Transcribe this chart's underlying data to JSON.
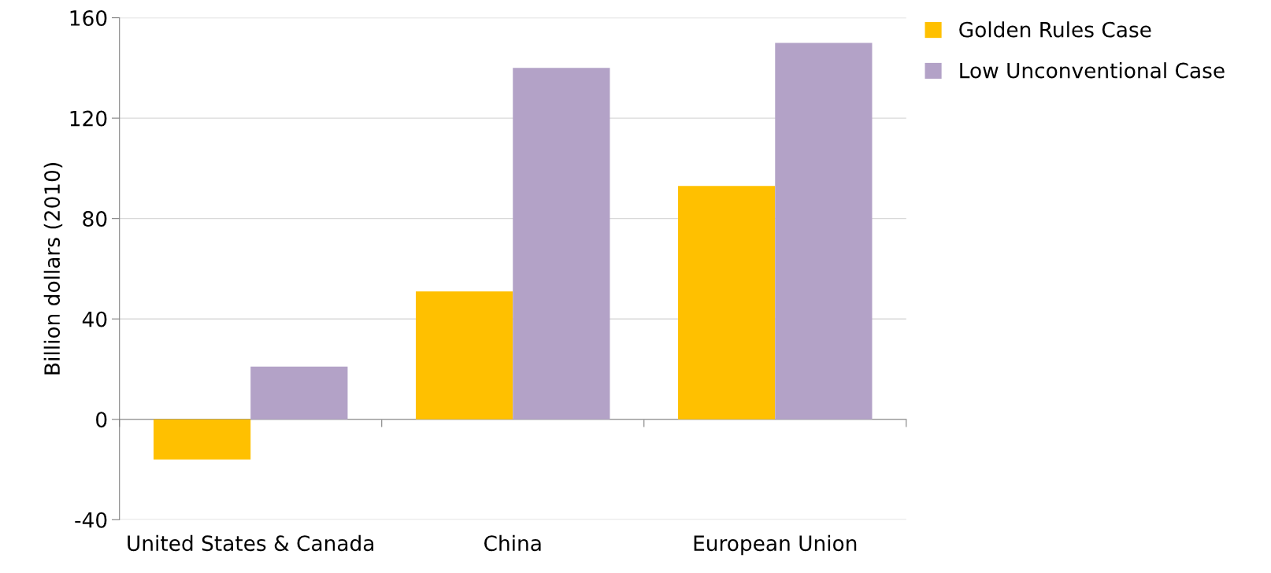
{
  "chart_data": {
    "type": "bar",
    "ylabel": "Billion dollars (2010)",
    "categories": [
      "United States & Canada",
      "China",
      "European Union"
    ],
    "series": [
      {
        "name": "Golden Rules Case",
        "color": "#ffc000",
        "values": [
          -16,
          51,
          93
        ]
      },
      {
        "name": "Low Unconventional Case",
        "color": "#b3a2c7",
        "values": [
          21,
          140,
          150
        ]
      }
    ],
    "ylim": [
      -40,
      160
    ],
    "yticks": [
      -40,
      0,
      40,
      80,
      120,
      160
    ],
    "grid": "y",
    "legend": "top right"
  }
}
